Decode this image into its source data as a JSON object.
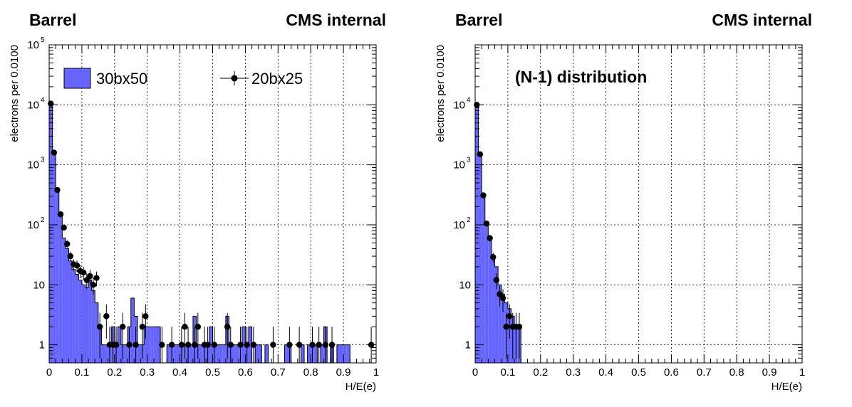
{
  "chart_data": [
    {
      "type": "histogram",
      "region_label": "Barrel",
      "experiment_label": "CMS internal",
      "annotation": "",
      "xlabel": "H/E(e)",
      "ylabel": "electrons per 0.0100",
      "xlim": [
        0,
        1
      ],
      "ylim": [
        0.5,
        100000
      ],
      "ylog": true,
      "grid": true,
      "bin_width": 0.01,
      "x_tick_labels": [
        "0",
        "0.1",
        "0.2",
        "0.3",
        "0.4",
        "0.5",
        "0.6",
        "0.7",
        "0.8",
        "0.9",
        "1"
      ],
      "y_tick_labels": [
        {
          "value": 1,
          "base": "1",
          "exp": ""
        },
        {
          "value": 10,
          "base": "10",
          "exp": ""
        },
        {
          "value": 100,
          "base": "10",
          "exp": "2"
        },
        {
          "value": 1000,
          "base": "10",
          "exp": "3"
        },
        {
          "value": 10000,
          "base": "10",
          "exp": "4"
        },
        {
          "value": 100000,
          "base": "10",
          "exp": "5"
        }
      ],
      "legend": {
        "placement": "top",
        "entries": [
          {
            "label": "30bx50",
            "style": "filled-histogram"
          },
          {
            "label": "20bx25",
            "style": "markers-with-errors"
          }
        ]
      },
      "series": [
        {
          "name": "30bx50",
          "style": "filled-histogram",
          "color": "#6666ff",
          "bins": [
            [
              0.0,
              10000
            ],
            [
              0.01,
              1500
            ],
            [
              0.02,
              380
            ],
            [
              0.03,
              150
            ],
            [
              0.04,
              60
            ],
            [
              0.05,
              40
            ],
            [
              0.06,
              25
            ],
            [
              0.07,
              18
            ],
            [
              0.08,
              15
            ],
            [
              0.09,
              12
            ],
            [
              0.1,
              10
            ],
            [
              0.11,
              9
            ],
            [
              0.12,
              12
            ],
            [
              0.13,
              8
            ],
            [
              0.14,
              5
            ],
            [
              0.15,
              2
            ],
            [
              0.16,
              1
            ],
            [
              0.17,
              1
            ],
            [
              0.18,
              1
            ],
            [
              0.19,
              2
            ],
            [
              0.2,
              1
            ],
            [
              0.21,
              2
            ],
            [
              0.22,
              1
            ],
            [
              0.23,
              1
            ],
            [
              0.24,
              2
            ],
            [
              0.25,
              6
            ],
            [
              0.26,
              3
            ],
            [
              0.27,
              1
            ],
            [
              0.28,
              1
            ],
            [
              0.29,
              2
            ],
            [
              0.3,
              2
            ],
            [
              0.31,
              2
            ],
            [
              0.32,
              2
            ],
            [
              0.33,
              2
            ],
            [
              0.36,
              1
            ],
            [
              0.37,
              1
            ],
            [
              0.38,
              1
            ],
            [
              0.39,
              1
            ],
            [
              0.4,
              1
            ],
            [
              0.41,
              1
            ],
            [
              0.42,
              1
            ],
            [
              0.43,
              1
            ],
            [
              0.44,
              3
            ],
            [
              0.45,
              1
            ],
            [
              0.46,
              1
            ],
            [
              0.47,
              1
            ],
            [
              0.48,
              1
            ],
            [
              0.49,
              2
            ],
            [
              0.5,
              1
            ],
            [
              0.51,
              1
            ],
            [
              0.52,
              1
            ],
            [
              0.53,
              1
            ],
            [
              0.54,
              3
            ],
            [
              0.55,
              1
            ],
            [
              0.56,
              1
            ],
            [
              0.57,
              1
            ],
            [
              0.58,
              1
            ],
            [
              0.59,
              2
            ],
            [
              0.6,
              1
            ],
            [
              0.61,
              2
            ],
            [
              0.63,
              1
            ],
            [
              0.64,
              1
            ],
            [
              0.66,
              1
            ],
            [
              0.72,
              1
            ],
            [
              0.73,
              1
            ],
            [
              0.77,
              1
            ],
            [
              0.79,
              1
            ],
            [
              0.8,
              1
            ],
            [
              0.81,
              1
            ],
            [
              0.83,
              1
            ],
            [
              0.84,
              2
            ],
            [
              0.86,
              1
            ],
            [
              0.88,
              1
            ],
            [
              0.89,
              1
            ],
            [
              0.9,
              1
            ],
            [
              0.91,
              1
            ]
          ]
        },
        {
          "name": "20bx25",
          "style": "markers-with-errors",
          "color": "#000000",
          "points": [
            [
              0.005,
              10500
            ],
            [
              0.015,
              1600
            ],
            [
              0.025,
              380
            ],
            [
              0.035,
              150
            ],
            [
              0.045,
              90
            ],
            [
              0.055,
              48
            ],
            [
              0.065,
              30
            ],
            [
              0.075,
              22
            ],
            [
              0.085,
              21
            ],
            [
              0.095,
              17
            ],
            [
              0.105,
              16
            ],
            [
              0.115,
              12
            ],
            [
              0.125,
              14
            ],
            [
              0.135,
              10
            ],
            [
              0.145,
              13
            ],
            [
              0.155,
              2
            ],
            [
              0.175,
              3
            ],
            [
              0.185,
              1
            ],
            [
              0.195,
              1
            ],
            [
              0.205,
              1
            ],
            [
              0.225,
              2
            ],
            [
              0.245,
              1
            ],
            [
              0.265,
              1
            ],
            [
              0.285,
              2
            ],
            [
              0.295,
              3
            ],
            [
              0.345,
              1
            ],
            [
              0.375,
              1
            ],
            [
              0.405,
              1
            ],
            [
              0.415,
              2
            ],
            [
              0.425,
              1
            ],
            [
              0.445,
              1
            ],
            [
              0.455,
              2
            ],
            [
              0.475,
              1
            ],
            [
              0.485,
              1
            ],
            [
              0.505,
              1
            ],
            [
              0.545,
              2
            ],
            [
              0.555,
              1
            ],
            [
              0.585,
              1
            ],
            [
              0.605,
              1
            ],
            [
              0.625,
              1
            ],
            [
              0.685,
              1
            ],
            [
              0.735,
              1
            ],
            [
              0.765,
              1
            ],
            [
              0.805,
              1
            ],
            [
              0.825,
              1
            ],
            [
              0.845,
              1
            ],
            [
              0.865,
              1
            ],
            [
              0.985,
              1
            ]
          ]
        }
      ]
    },
    {
      "type": "histogram",
      "region_label": "Barrel",
      "experiment_label": "CMS internal",
      "annotation": "(N-1) distribution",
      "xlabel": "H/E(e)",
      "ylabel": "electrons per 0.0100",
      "xlim": [
        0,
        1
      ],
      "ylim": [
        0.5,
        100000
      ],
      "ylog": true,
      "grid": true,
      "bin_width": 0.01,
      "x_tick_labels": [
        "0",
        "0.1",
        "0.2",
        "0.3",
        "0.4",
        "0.5",
        "0.6",
        "0.7",
        "0.8",
        "0.9",
        "1"
      ],
      "y_tick_labels": [
        {
          "value": 1,
          "base": "1",
          "exp": ""
        },
        {
          "value": 10,
          "base": "10",
          "exp": ""
        },
        {
          "value": 100,
          "base": "10",
          "exp": "2"
        },
        {
          "value": 1000,
          "base": "10",
          "exp": "3"
        },
        {
          "value": 10000,
          "base": "10",
          "exp": "4"
        }
      ],
      "legend": null,
      "series": [
        {
          "name": "30bx50",
          "style": "filled-histogram",
          "color": "#6666ff",
          "bins": [
            [
              0.0,
              9500
            ],
            [
              0.01,
              1500
            ],
            [
              0.02,
              300
            ],
            [
              0.03,
              100
            ],
            [
              0.04,
              60
            ],
            [
              0.05,
              30
            ],
            [
              0.06,
              20
            ],
            [
              0.07,
              10
            ],
            [
              0.08,
              7
            ],
            [
              0.09,
              5
            ],
            [
              0.1,
              4
            ],
            [
              0.11,
              3
            ],
            [
              0.12,
              2
            ],
            [
              0.13,
              2
            ]
          ]
        },
        {
          "name": "20bx25",
          "style": "markers-with-errors",
          "color": "#000000",
          "points": [
            [
              0.005,
              10000
            ],
            [
              0.015,
              1500
            ],
            [
              0.025,
              310
            ],
            [
              0.035,
              105
            ],
            [
              0.045,
              60
            ],
            [
              0.055,
              29
            ],
            [
              0.065,
              12
            ],
            [
              0.075,
              7
            ],
            [
              0.085,
              6
            ],
            [
              0.095,
              2
            ],
            [
              0.105,
              3
            ],
            [
              0.115,
              2
            ],
            [
              0.125,
              2
            ],
            [
              0.135,
              2
            ]
          ]
        }
      ]
    }
  ]
}
